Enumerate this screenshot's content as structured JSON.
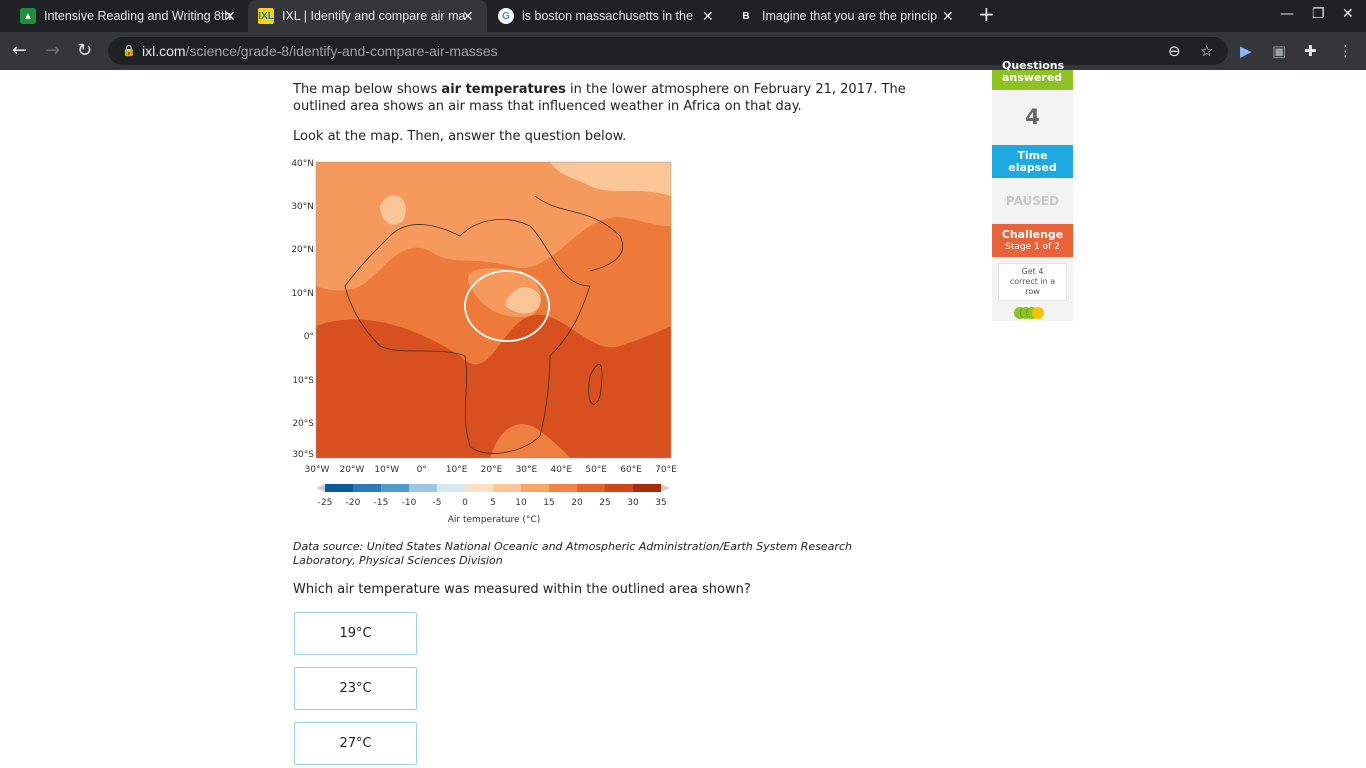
{
  "browser": {
    "tabs": [
      {
        "title": "Intensive Reading and Writing 8th",
        "icon": "classroom-icon",
        "color": "#1e8e3e"
      },
      {
        "title": "IXL | Identify and compare air ma",
        "icon": "ixl-icon",
        "color": "#f5d20a",
        "active": true
      },
      {
        "title": "is boston massachusetts in the",
        "icon": "google-icon",
        "color": "#4285f4"
      },
      {
        "title": "Imagine that you are the princip",
        "icon": "brainly-icon",
        "color": "#ffffff"
      }
    ],
    "url_domain": "ixl.com",
    "url_path": "/science/grade-8/identify-and-compare-air-masses"
  },
  "question": {
    "intro_before": "The map below shows ",
    "intro_bold": "air temperatures",
    "intro_after": " in the lower atmosphere on February 21, 2017. The outlined area shows an air mass that influenced weather in Africa on that day.",
    "instruction": "Look at the map. Then, answer the question below.",
    "source": "Data source: United States National Oceanic and Atmospheric Administration/Earth System Research Laboratory, Physical Sciences Division",
    "prompt": "Which air temperature was measured within the outlined area shown?",
    "answers": [
      "19°C",
      "23°C",
      "27°C"
    ]
  },
  "map": {
    "lat_labels": [
      "40°N",
      "30°N",
      "20°N",
      "10°N",
      "0°",
      "10°S",
      "20°S",
      "30°S"
    ],
    "lon_labels": [
      "30°W",
      "20°W",
      "10°W",
      "0°",
      "10°E",
      "20°E",
      "30°E",
      "40°E",
      "50°E",
      "60°E",
      "70°E"
    ],
    "legend_ticks": [
      "-25",
      "-20",
      "-15",
      "-10",
      "-5",
      "0",
      "5",
      "10",
      "15",
      "20",
      "25",
      "30",
      "35"
    ],
    "legend_colors": [
      "#0b5aa0",
      "#2b7bbb",
      "#4f9bcb",
      "#9cc7e4",
      "#d6e6f3",
      "#fde0c5",
      "#fcc597",
      "#f9a566",
      "#f18446",
      "#e66228",
      "#d1451b",
      "#a82a0f"
    ],
    "legend_title": "Air temperature (°C)"
  },
  "sidebar": {
    "questions_label": "Questions answered",
    "questions_value": "4",
    "time_label": "Time elapsed",
    "time_value": "PAUSED",
    "challenge_label": "Challenge",
    "challenge_stage": "Stage 1 of 2",
    "goal": "Get 4 correct in a row",
    "colors": {
      "green": "#8dc225",
      "blue": "#1fa9e1",
      "orange": "#e8623a",
      "yellow": "#f5c400"
    }
  }
}
